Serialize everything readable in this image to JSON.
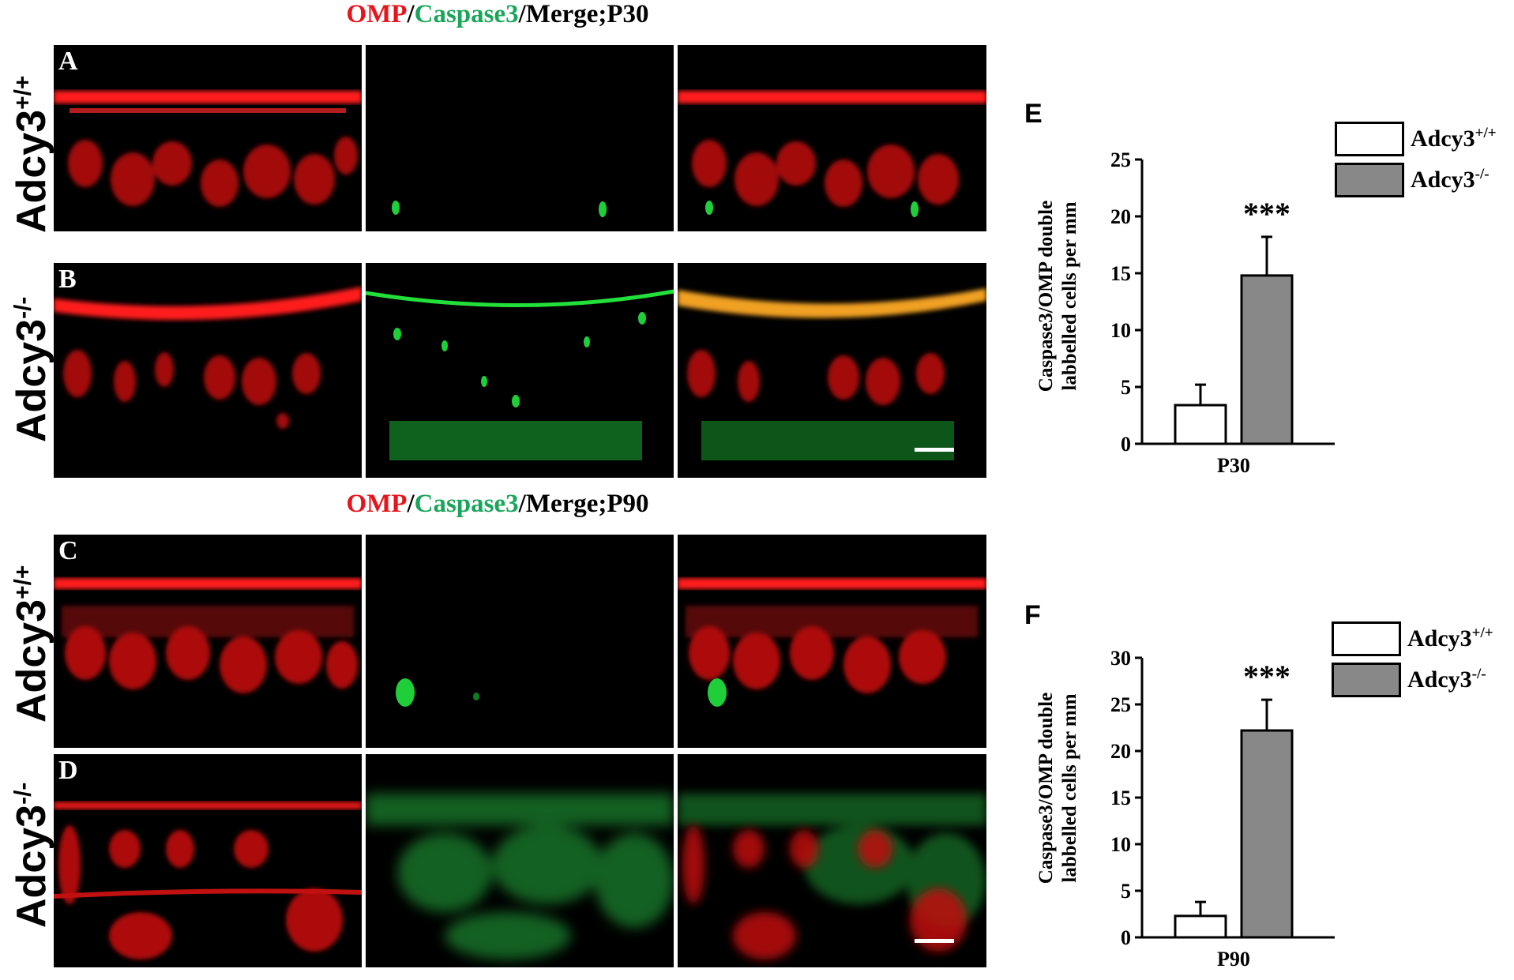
{
  "figure": {
    "top_title": {
      "omp": "OMP",
      "sep1": "/",
      "caspase": "Caspase3",
      "rest": "/Merge;P30"
    },
    "mid_title": {
      "omp": "OMP",
      "sep1": "/",
      "caspase": "Caspase3",
      "rest": "/Merge;P90"
    },
    "row_labels": {
      "wt": {
        "base": "Adcy3",
        "sup": "+/+"
      },
      "ko": {
        "base": "Adcy3",
        "sup": "-/-"
      }
    },
    "panels": {
      "a": "A",
      "b": "B",
      "c": "C",
      "d": "D"
    },
    "colors": {
      "omp": "#e8141b",
      "caspase": "#1aa65a",
      "text": "#000000",
      "gray_bar": "#888888"
    }
  },
  "chart_data": [
    {
      "type": "bar",
      "panel": "E",
      "categories": [
        "P30"
      ],
      "series": [
        {
          "name": "Adcy3+/+",
          "values": [
            3.4
          ],
          "error": [
            1.8
          ],
          "color": "#ffffff"
        },
        {
          "name": "Adcy3-/-",
          "values": [
            14.8
          ],
          "error": [
            3.4
          ],
          "color": "#888888"
        }
      ],
      "ylabel_line1": "Caspase3/OMP double",
      "ylabel_line2": "labbelled cells per mm",
      "ylim": [
        0,
        25
      ],
      "yticks": [
        "0",
        "5",
        "10",
        "15",
        "20",
        "25"
      ],
      "xlabel": "P30",
      "annotation": "***",
      "legend": [
        {
          "base": "Adcy3",
          "sup": "+/+"
        },
        {
          "base": "Adcy3",
          "sup": "-/-"
        }
      ],
      "legend_position": "top-right"
    },
    {
      "type": "bar",
      "panel": "F",
      "categories": [
        "P90"
      ],
      "series": [
        {
          "name": "Adcy3+/+",
          "values": [
            2.3
          ],
          "error": [
            1.5
          ],
          "color": "#ffffff"
        },
        {
          "name": "Adcy3-/-",
          "values": [
            22.2
          ],
          "error": [
            3.3
          ],
          "color": "#888888"
        }
      ],
      "ylabel_line1": "Caspase3/OMP double",
      "ylabel_line2": "labbelled cells per mm",
      "ylim": [
        0,
        30
      ],
      "yticks": [
        "0",
        "5",
        "10",
        "15",
        "20",
        "25",
        "30"
      ],
      "xlabel": "P90",
      "annotation": "***",
      "legend": [
        {
          "base": "Adcy3",
          "sup": "+/+"
        },
        {
          "base": "Adcy3",
          "sup": "-/-"
        }
      ],
      "legend_position": "top-right"
    }
  ]
}
